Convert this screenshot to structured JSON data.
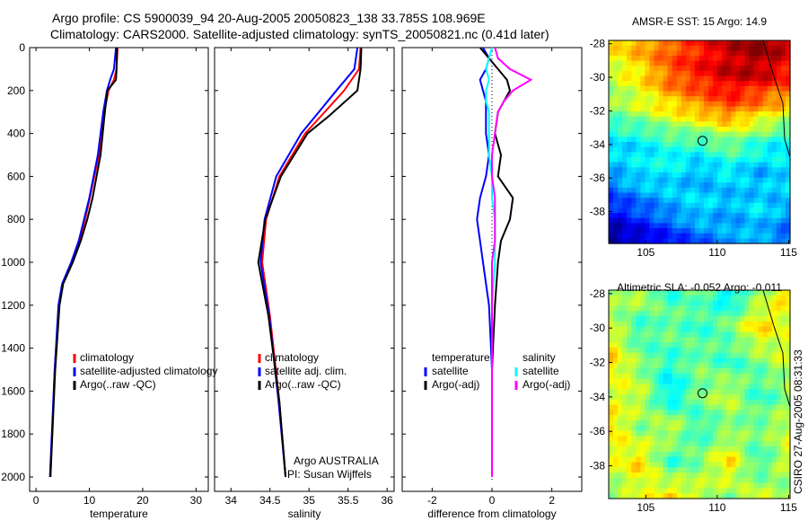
{
  "title_line1": "Argo profile: CS 5900039_94 20-Aug-2005 20050823_138 33.785S 108.969E",
  "title_line2": "Climatology: CARS2000. Satellite-adjusted climatology: synTS_20050821.nc (0.41d later)",
  "footer": "CSIRO 27-Aug-2005 08:31:33",
  "chart_data": [
    {
      "type": "line",
      "xlabel": "temperature",
      "xlim": [
        -1.2,
        32.3
      ],
      "ylim": [
        0,
        2067
      ],
      "yreversed": true,
      "xticks": [
        0,
        10,
        20,
        30
      ],
      "yticks": [
        0,
        200,
        400,
        600,
        800,
        1000,
        1200,
        1400,
        1600,
        1800,
        2000
      ],
      "legend": [
        "climatology",
        "satellite-adjusted climatology",
        "Argo(..raw -QC)"
      ],
      "depth": [
        0,
        100,
        150,
        200,
        300,
        500,
        700,
        800,
        900,
        1000,
        1100,
        1200,
        1500,
        2000
      ],
      "series": [
        {
          "name": "climatology",
          "color": "#ff0000",
          "values": [
            15.3,
            15.1,
            14.6,
            13.6,
            12.8,
            11.8,
            10.1,
            9.2,
            8.2,
            6.8,
            5.0,
            4.3,
            3.5,
            2.7
          ]
        },
        {
          "name": "satellite-adjusted climatology",
          "color": "#0000ff",
          "values": [
            15.0,
            14.6,
            13.9,
            13.3,
            12.6,
            11.6,
            10.0,
            9.0,
            8.0,
            6.6,
            4.9,
            4.2,
            3.5,
            2.6
          ]
        },
        {
          "name": "Argo(..raw -QC)",
          "color": "#000000",
          "values": [
            15.2,
            15.1,
            15.0,
            13.4,
            12.9,
            12.1,
            10.6,
            9.6,
            8.4,
            6.9,
            5.1,
            4.4,
            3.6,
            2.7
          ]
        }
      ]
    },
    {
      "type": "line",
      "xlabel": "salinity",
      "xlim": [
        33.79,
        36.09
      ],
      "ylim": [
        0,
        2067
      ],
      "yreversed": true,
      "xticks": [
        34,
        34.5,
        35,
        35.5,
        36
      ],
      "legend": [
        "climatology",
        "satellite adj. clim.",
        "Argo(..raw -QC)"
      ],
      "annotations": [
        "Argo AUSTRALIA",
        "PI: Susan Wijffels"
      ],
      "depth": [
        0,
        100,
        200,
        320,
        400,
        600,
        800,
        1000,
        1250,
        1650,
        2000
      ],
      "series": [
        {
          "name": "climatology",
          "color": "#ff0000",
          "values": [
            35.66,
            35.64,
            35.45,
            35.15,
            34.95,
            34.62,
            34.45,
            34.4,
            34.5,
            34.62,
            34.7
          ]
        },
        {
          "name": "satellite adj. clim.",
          "color": "#0000ff",
          "values": [
            35.62,
            35.58,
            35.35,
            35.08,
            34.9,
            34.58,
            34.43,
            34.38,
            34.49,
            34.61,
            34.7
          ]
        },
        {
          "name": "Argo(..raw -QC)",
          "color": "#000000",
          "values": [
            35.67,
            35.66,
            35.62,
            35.25,
            34.98,
            34.64,
            34.44,
            34.35,
            34.48,
            34.62,
            34.7
          ]
        }
      ]
    },
    {
      "type": "line",
      "xlabel": "difference from climatology",
      "xlim": [
        -3,
        3
      ],
      "ylim": [
        0,
        2067
      ],
      "yreversed": true,
      "xticks": [
        -2,
        0,
        2
      ],
      "legend_headers": [
        "temperature",
        "salinity"
      ],
      "legend": [
        "satellite",
        "Argo(-adj)",
        "satellite",
        "Argo(-adj)"
      ],
      "depth": [
        0,
        50,
        100,
        150,
        200,
        250,
        300,
        400,
        500,
        600,
        700,
        800,
        900,
        1000,
        1200,
        1500,
        2000
      ],
      "series": [
        {
          "name": "temperature satellite",
          "color": "#0000ff",
          "values": [
            -0.3,
            -0.1,
            -0.2,
            -0.4,
            -0.3,
            -0.2,
            -0.2,
            -0.2,
            -0.1,
            -0.2,
            -0.4,
            -0.5,
            -0.4,
            -0.3,
            -0.1,
            0,
            0
          ]
        },
        {
          "name": "temperature Argo(-adj)",
          "color": "#000000",
          "values": [
            -0.4,
            -0.1,
            0.2,
            0.5,
            0.6,
            0.4,
            0.2,
            0.1,
            0.3,
            0.2,
            0.7,
            0.6,
            0.3,
            0.2,
            0.1,
            0,
            0
          ]
        },
        {
          "name": "salinity satellite",
          "color": "#00ffff",
          "values": [
            0,
            -0.1,
            -0.2,
            -0.1,
            -0.2,
            -0.2,
            -0.1,
            -0.1,
            -0.1,
            0,
            0,
            0.1,
            0.1,
            0.1,
            0,
            0,
            0
          ]
        },
        {
          "name": "salinity Argo(-adj)",
          "color": "#ff00ff",
          "values": [
            0.1,
            0.2,
            0.6,
            1.3,
            0.7,
            0.4,
            0.2,
            0.1,
            0,
            0,
            0.1,
            0.1,
            0.1,
            0,
            0,
            0,
            0
          ]
        }
      ]
    },
    {
      "type": "heatmap",
      "title": "AMSR-E SST: 15 Argo: 14.9",
      "xlim": [
        102.4,
        115.1
      ],
      "ylim": [
        -39.9,
        -27.8
      ],
      "xticks": [
        105,
        110,
        115
      ],
      "yticks": [
        -28,
        -30,
        -32,
        -34,
        -36,
        -38
      ],
      "vmin": 13,
      "vmax": 20,
      "profile_location": [
        108.969,
        -33.785
      ],
      "grid": [
        [
          17.5,
          18,
          18.5,
          19,
          19.5,
          20,
          19.5
        ],
        [
          17,
          17.5,
          18.5,
          19,
          19.5,
          19.5,
          19
        ],
        [
          16.5,
          17,
          17.5,
          18,
          18.5,
          18,
          17.5
        ],
        [
          15.5,
          15.5,
          16,
          16,
          16.5,
          16,
          15.5
        ],
        [
          15,
          15.5,
          15.5,
          15,
          15.5,
          15,
          15.5
        ],
        [
          14,
          14.5,
          15,
          15.5,
          15,
          15.5,
          15
        ],
        [
          13,
          13.5,
          14,
          14.5,
          15,
          15,
          14.5
        ]
      ]
    },
    {
      "type": "heatmap",
      "title": "Altimetric SLA: -0.052 Argo: -0.011",
      "xlim": [
        102.4,
        115.1
      ],
      "ylim": [
        -39.9,
        -27.8
      ],
      "xticks": [
        105,
        110,
        115
      ],
      "yticks": [
        -28,
        -30,
        -32,
        -34,
        -36,
        -38
      ],
      "vmin": -0.3,
      "vmax": 0.3,
      "profile_location": [
        108.969,
        -33.785
      ],
      "grid": [
        [
          0,
          0.05,
          -0.05,
          0,
          -0.1,
          0,
          0.1
        ],
        [
          0.05,
          -0.05,
          0,
          -0.05,
          0,
          0.1,
          0.05
        ],
        [
          0.1,
          0,
          -0.05,
          0,
          -0.05,
          0,
          0.05
        ],
        [
          0.05,
          0.05,
          -0.1,
          0,
          0.05,
          -0.05,
          0
        ],
        [
          0.1,
          0,
          0.05,
          -0.05,
          0,
          0,
          0.05
        ],
        [
          0.05,
          0.1,
          -0.05,
          0,
          0.1,
          -0.05,
          0.05
        ],
        [
          0,
          0.05,
          0.1,
          0.05,
          0,
          0.05,
          0
        ]
      ]
    }
  ]
}
